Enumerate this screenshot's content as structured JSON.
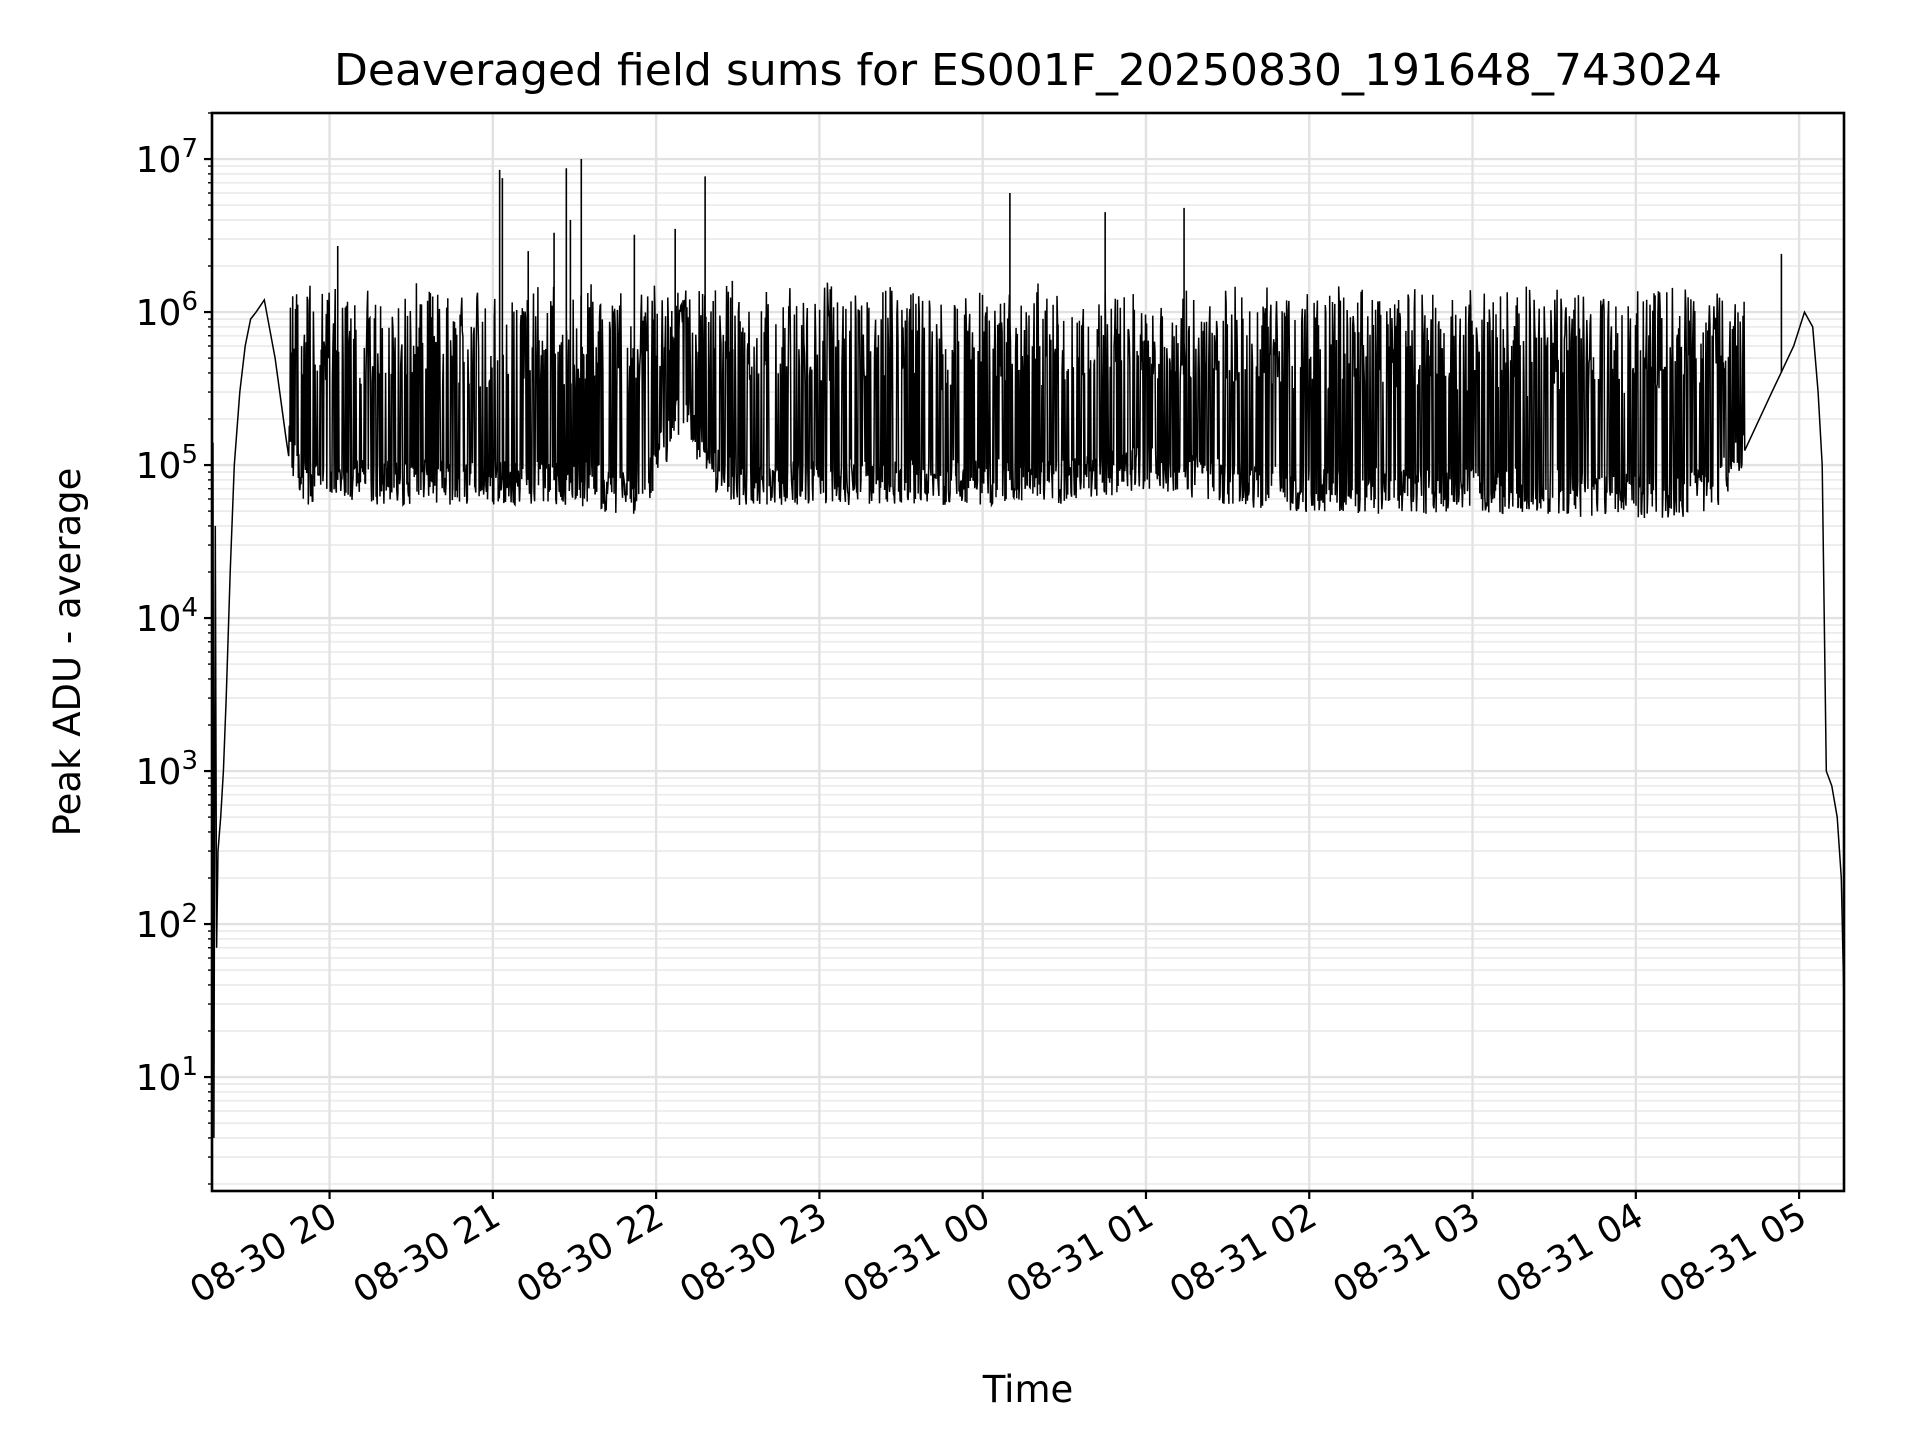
{
  "chart_data": {
    "type": "line",
    "title": "Deaveraged field sums for ES001F_20250830_191648_743024",
    "xlabel": "Time",
    "ylabel": "Peak ADU - average",
    "yscale": "log",
    "ylim": [
      1.8,
      20000000
    ],
    "xlim": [
      "2025-08-30 19:16:48",
      "2025-08-31 05:16:30"
    ],
    "x_ticks": [
      "2025-08-30 20:00",
      "2025-08-30 21:00",
      "2025-08-30 22:00",
      "2025-08-30 23:00",
      "2025-08-31 00:00",
      "2025-08-31 01:00",
      "2025-08-31 02:00",
      "2025-08-31 03:00",
      "2025-08-31 04:00",
      "2025-08-31 05:00"
    ],
    "x_tick_labels": [
      "08-30 20",
      "08-30 21",
      "08-30 22",
      "08-30 23",
      "08-31 00",
      "08-31 01",
      "08-31 02",
      "08-31 03",
      "08-31 04",
      "08-31 05"
    ],
    "y_ticks": [
      10,
      100,
      1000,
      10000,
      100000,
      1000000,
      10000000
    ],
    "grid": "major and minor",
    "series_color": "#000000",
    "series": [
      {
        "x": [
          "2025-08-30 19:16:48",
          "2025-08-30 19:17:10",
          "2025-08-30 19:17:30",
          "2025-08-30 19:18:00",
          "2025-08-30 19:18:30",
          "2025-08-30 19:19:00",
          "2025-08-30 19:20:00",
          "2025-08-30 19:21:00",
          "2025-08-30 19:22:00",
          "2025-08-30 19:23:30",
          "2025-08-30 19:25:00",
          "2025-08-30 19:27:00",
          "2025-08-30 19:29:00",
          "2025-08-30 19:31:00",
          "2025-08-30 19:33:00",
          "2025-08-30 19:36:00",
          "2025-08-30 19:40:00",
          "2025-08-30 19:44:00",
          "2025-08-30 19:48:00",
          "2025-08-30 19:52:00",
          "2025-08-30 19:56:00",
          "2025-08-30 20:00:00",
          "2025-08-30 20:20:00",
          "2025-08-30 20:40:00",
          "2025-08-30 21:00:00",
          "2025-08-30 21:30:00",
          "2025-08-30 21:45:00",
          "2025-08-30 21:55:00",
          "2025-08-30 22:10:00",
          "2025-08-30 22:20:00",
          "2025-08-30 22:30:00",
          "2025-08-30 23:00:00",
          "2025-08-31 00:00:00",
          "2025-08-31 00:30:00",
          "2025-08-31 01:00:00",
          "2025-08-31 01:30:00",
          "2025-08-31 02:00:00",
          "2025-08-31 02:30:00",
          "2025-08-31 03:00:00",
          "2025-08-31 03:30:00",
          "2025-08-31 03:45:00",
          "2025-08-31 04:15:00",
          "2025-08-31 04:30:00",
          "2025-08-31 04:40:00",
          "2025-08-31 04:50:00",
          "2025-08-31 04:58:00",
          "2025-08-31 05:02:00",
          "2025-08-31 05:05:00",
          "2025-08-31 05:07:00",
          "2025-08-31 05:08:30",
          "2025-08-31 05:10:00",
          "2025-08-31 05:12:00",
          "2025-08-31 05:14:00",
          "2025-08-31 05:15:30",
          "2025-08-31 05:16:30"
        ],
        "y": [
          2,
          140000,
          4,
          40000,
          70,
          300,
          500,
          1000,
          3000,
          20000,
          100000,
          300000,
          600000,
          900000,
          1000000,
          1200000,
          500000,
          150000,
          100000,
          80000,
          80000,
          80000,
          80000,
          80000,
          80000,
          80000,
          70000,
          70000,
          250000,
          100000,
          80000,
          80000,
          80000,
          80000,
          100000,
          80000,
          70000,
          70000,
          70000,
          70000,
          65000,
          65000,
          75000,
          150000,
          300000,
          600000,
          1000000,
          800000,
          300000,
          100000,
          1000,
          800,
          500,
          200,
          30
        ]
      }
    ],
    "spikes": [
      {
        "x": "2025-08-30 20:03:00",
        "y": 2700000
      },
      {
        "x": "2025-08-30 21:02:30",
        "y": 8500000
      },
      {
        "x": "2025-08-30 21:03:30",
        "y": 7500000
      },
      {
        "x": "2025-08-30 21:13:00",
        "y": 2500000
      },
      {
        "x": "2025-08-30 21:22:30",
        "y": 3300000
      },
      {
        "x": "2025-08-30 21:27:00",
        "y": 8700000
      },
      {
        "x": "2025-08-30 21:28:30",
        "y": 4000000
      },
      {
        "x": "2025-08-30 21:32:30",
        "y": 10000000
      },
      {
        "x": "2025-08-30 21:52:00",
        "y": 3200000
      },
      {
        "x": "2025-08-30 22:07:00",
        "y": 3500000
      },
      {
        "x": "2025-08-30 22:18:00",
        "y": 7700000
      },
      {
        "x": "2025-08-30 22:28:00",
        "y": 1600000
      },
      {
        "x": "2025-08-31 00:10:00",
        "y": 6000000
      },
      {
        "x": "2025-08-31 00:45:00",
        "y": 4500000
      },
      {
        "x": "2025-08-31 01:14:00",
        "y": 4800000
      },
      {
        "x": "2025-08-31 04:53:30",
        "y": 2400000
      }
    ]
  }
}
